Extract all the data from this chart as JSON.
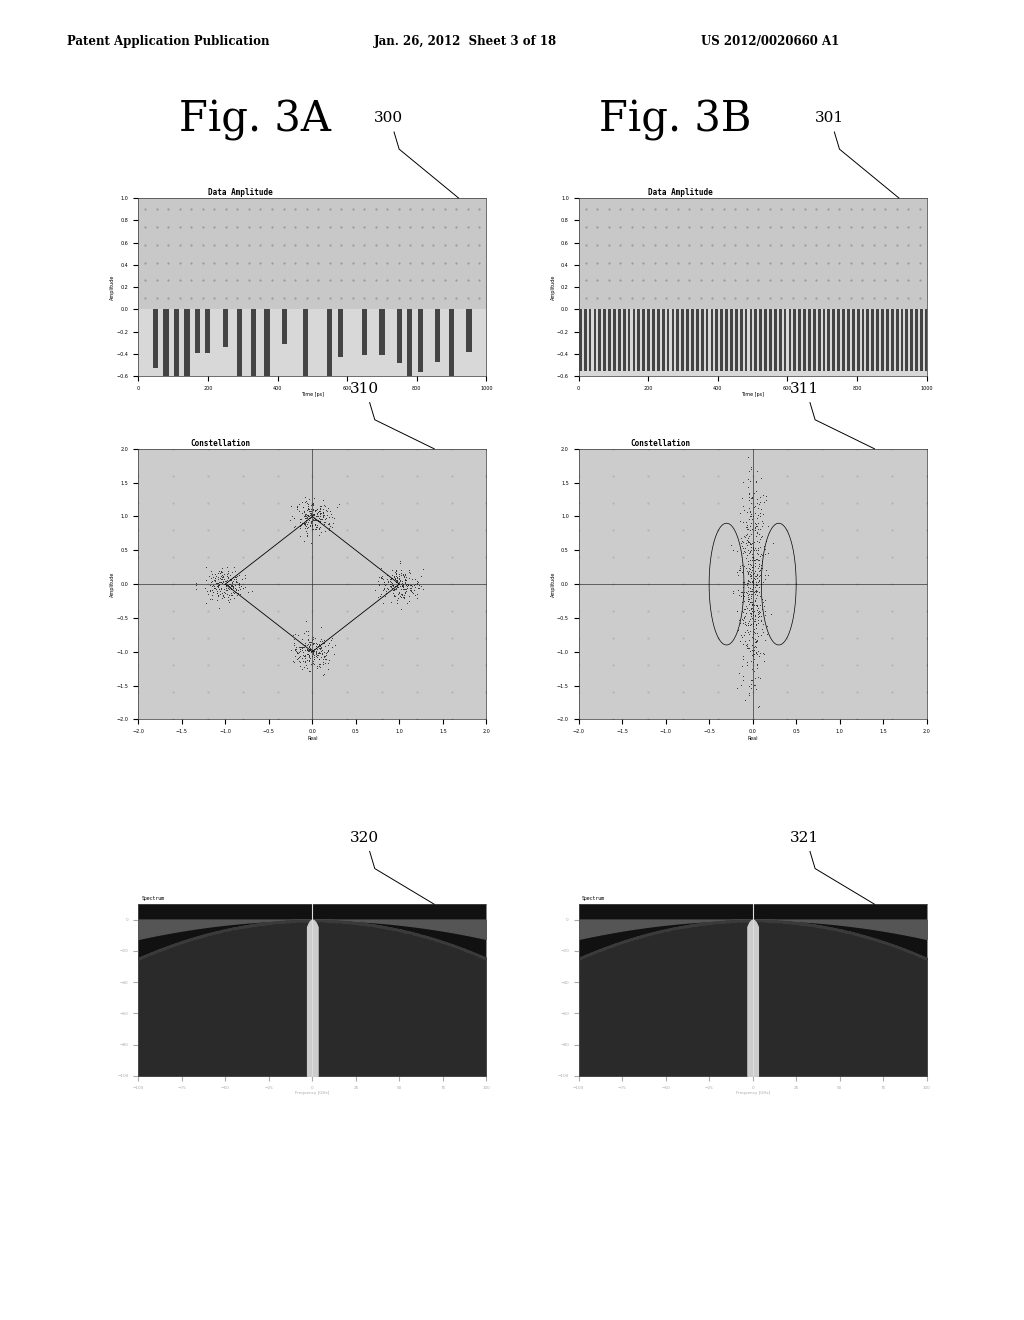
{
  "header_left": "Patent Application Publication",
  "header_mid": "Jan. 26, 2012  Sheet 3 of 18",
  "header_right": "US 2012/0020660 A1",
  "fig_label_A": "Fig. 3A",
  "fig_label_B": "Fig. 3B",
  "label_300": "300",
  "label_301": "301",
  "label_310": "310",
  "label_311": "311",
  "label_320": "320",
  "label_321": "321",
  "chart_title_amp": "Data Amplitude",
  "chart_title_const": "Constellation",
  "bg_color": "#ffffff",
  "chart_bg_dotted": "#d4d4d4",
  "chart_bg_lower": "#c8c8c8",
  "bar_color_sparse": "#555555",
  "bar_color_dense": "#666666"
}
